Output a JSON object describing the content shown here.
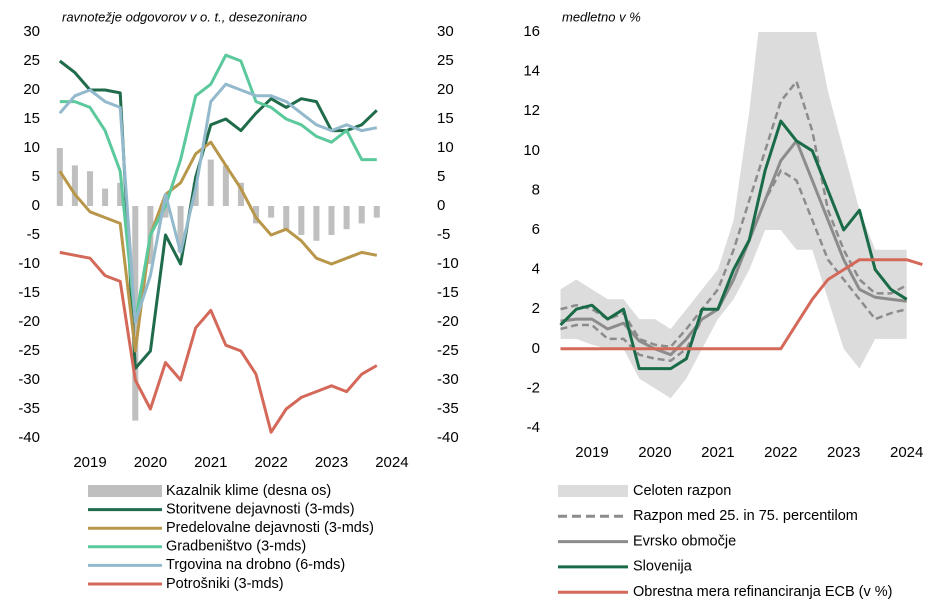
{
  "chart_data": [
    {
      "type": "combo",
      "title": "ravnotežje odgovorov v o. t., desezonirano",
      "x": [
        2019,
        2019.25,
        2019.5,
        2019.75,
        2020,
        2020.25,
        2020.5,
        2020.75,
        2021,
        2021.25,
        2021.5,
        2021.75,
        2022,
        2022.25,
        2022.5,
        2022.75,
        2023,
        2023.25,
        2023.5,
        2023.75,
        2024,
        2024.25
      ],
      "xlim": [
        2018.97,
        2024.8
      ],
      "xticks": [
        {
          "value": 2019.5,
          "label": "2019"
        },
        {
          "value": 2020.5,
          "label": "2020"
        },
        {
          "value": 2021.5,
          "label": "2021"
        },
        {
          "value": 2022.5,
          "label": "2022"
        },
        {
          "value": 2023.5,
          "label": "2023"
        },
        {
          "value": 2024.5,
          "label": "2024"
        }
      ],
      "ylim": [
        -40,
        30
      ],
      "yticks": [
        30,
        25,
        20,
        15,
        10,
        5,
        0,
        -5,
        -10,
        -15,
        -20,
        -25,
        -30,
        -35,
        -40
      ],
      "y2lim": [
        -40,
        30
      ],
      "y2ticks": [
        30,
        25,
        20,
        15,
        10,
        5,
        0,
        -5,
        -10,
        -15,
        -20,
        -25,
        -30,
        -35,
        -40
      ],
      "series": [
        {
          "name": "Kazalnik klime (desna os)",
          "type": "bar",
          "axis": "y2",
          "color": "#bfbfbf",
          "values": [
            10,
            7,
            6,
            3,
            4,
            -37,
            -10,
            -2,
            -8,
            4,
            8,
            7,
            4,
            -3,
            -2,
            -4,
            -5,
            -6,
            -5,
            -4,
            -3,
            -2
          ]
        },
        {
          "name": "Storitvene dejavnosti (3-mds)",
          "type": "line",
          "color": "#1f6b4a",
          "values": [
            25,
            23,
            20,
            20,
            19.5,
            -28,
            -25,
            -5,
            -10,
            5,
            14,
            15,
            13,
            16,
            18.5,
            17,
            18.5,
            18,
            13,
            13,
            14,
            16.5
          ]
        },
        {
          "name": "Predelovalne dejavnosti (3-mds)",
          "type": "line",
          "color": "#b8964a",
          "values": [
            6,
            2,
            -1,
            -2,
            -3,
            -25,
            -5,
            2,
            4,
            9,
            11,
            7,
            3,
            -2,
            -5,
            -4,
            -6,
            -9,
            -10,
            -9,
            -8,
            -8.5
          ]
        },
        {
          "name": "Gradbeništvo (3-mds)",
          "type": "line",
          "color": "#5cc99c",
          "values": [
            18,
            18,
            17,
            13,
            6,
            -20,
            -5,
            0,
            8,
            19,
            21,
            26,
            25,
            18,
            17,
            15,
            14,
            12,
            11,
            13,
            8,
            8
          ]
        },
        {
          "name": "Trgovina na drobno (6-mds)",
          "type": "line",
          "color": "#93b9cc",
          "values": [
            16,
            19,
            20,
            18,
            17,
            -20,
            -12,
            2,
            -8,
            3,
            18,
            21,
            20,
            19,
            19,
            18,
            16,
            14,
            13,
            14,
            13,
            13.5
          ]
        },
        {
          "name": "Potrošniki (3-mds)",
          "type": "line",
          "color": "#d4695a",
          "values": [
            -8,
            -8.5,
            -9,
            -12,
            -13,
            -30,
            -35,
            -27,
            -30,
            -21,
            -18,
            -24,
            -25,
            -29,
            -39,
            -35,
            -33,
            -32,
            -31,
            -32,
            -29,
            -27.5
          ]
        }
      ]
    },
    {
      "type": "line",
      "title": "medletno v %",
      "x": [
        2019,
        2019.25,
        2019.5,
        2019.75,
        2020,
        2020.25,
        2020.5,
        2020.75,
        2021,
        2021.25,
        2021.5,
        2021.75,
        2022,
        2022.25,
        2022.5,
        2022.75,
        2023,
        2023.25,
        2023.5,
        2023.75,
        2024,
        2024.25,
        2024.5,
        2024.75
      ],
      "xlim": [
        2018.96,
        2024.95
      ],
      "xticks": [
        {
          "value": 2019.5,
          "label": "2019"
        },
        {
          "value": 2020.5,
          "label": "2020"
        },
        {
          "value": 2021.5,
          "label": "2021"
        },
        {
          "value": 2022.5,
          "label": "2022"
        },
        {
          "value": 2023.5,
          "label": "2023"
        },
        {
          "value": 2024.5,
          "label": "2024"
        }
      ],
      "ylim": [
        -4,
        16
      ],
      "yticks": [
        16,
        14,
        12,
        10,
        8,
        6,
        4,
        2,
        0,
        -2,
        -4
      ],
      "series": [
        {
          "name": "Celoten razpon",
          "type": "area",
          "color": "#dcdcdc",
          "low": [
            0.5,
            0.5,
            0.2,
            0,
            0,
            -1.5,
            -2,
            -2.5,
            -1.5,
            0,
            1.5,
            2.5,
            4,
            6,
            6,
            5,
            5,
            2.5,
            0,
            -1,
            0.5,
            0.5,
            0.5,
            null
          ],
          "high": [
            3,
            3.5,
            3,
            2.5,
            2.5,
            1.5,
            1.5,
            1,
            2,
            3,
            4,
            6.5,
            12,
            19,
            21,
            20,
            17,
            13,
            10,
            7,
            5,
            5,
            5,
            null
          ]
        },
        {
          "name": "Razpon med 25. in 75. percentilom",
          "type": "band",
          "color": "#8c8c8c",
          "low": [
            1,
            1.2,
            1.2,
            0.5,
            0.5,
            -0.3,
            -0.5,
            -0.6,
            0,
            1.5,
            2,
            3.5,
            5.5,
            7.5,
            9,
            8.5,
            6.5,
            4.5,
            3.5,
            2.5,
            1.5,
            1.8,
            2,
            null
          ],
          "high": [
            2,
            2.2,
            2,
            1.5,
            1.8,
            0.5,
            0.2,
            0.1,
            1,
            2,
            3,
            5,
            7.5,
            10,
            12.5,
            13.5,
            11,
            7,
            5,
            3.5,
            2.8,
            2.8,
            3.2,
            null
          ]
        },
        {
          "name": "Evrsko območje",
          "type": "line",
          "color": "#8c8c8c",
          "values": [
            1.4,
            1.5,
            1.5,
            1,
            1.3,
            0.4,
            0,
            -0.3,
            0.5,
            1.5,
            2,
            3.5,
            5.5,
            7.5,
            9.5,
            10.5,
            8.5,
            6.5,
            4.5,
            3,
            2.6,
            2.5,
            2.4,
            null
          ]
        },
        {
          "name": "Slovenija",
          "type": "line",
          "color": "#1a6b47",
          "values": [
            1.2,
            2,
            2.2,
            1.5,
            2,
            -1,
            -1,
            -1,
            -0.5,
            2,
            2,
            4,
            5.5,
            9,
            11.5,
            10.5,
            10,
            8,
            6,
            7,
            4,
            3,
            2.5,
            null
          ]
        },
        {
          "name": "Obrestna mera refinanciranja ECB (v %)",
          "type": "line",
          "color": "#d4695a",
          "values": [
            0,
            0,
            0,
            0,
            0,
            0,
            0,
            0,
            0,
            0,
            0,
            0,
            0,
            0,
            0,
            1.25,
            2.5,
            3.5,
            4,
            4.5,
            4.5,
            4.5,
            4.5,
            4.25
          ]
        }
      ]
    }
  ]
}
